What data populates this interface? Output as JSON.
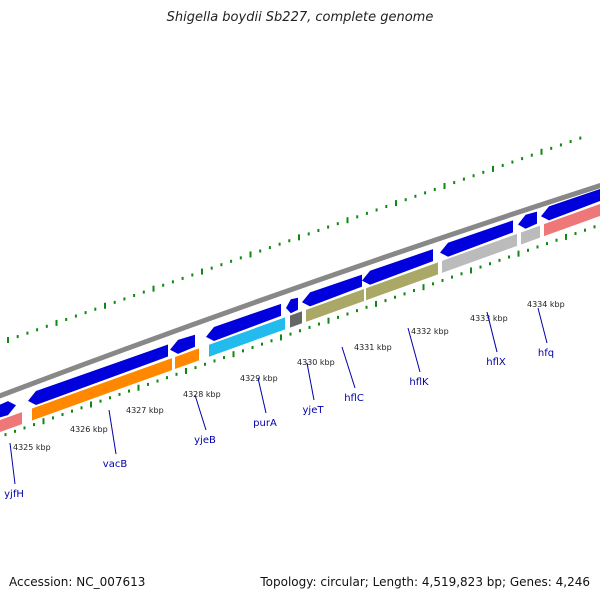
{
  "title": "Shigella boydii Sb227, complete genome",
  "footer": {
    "accession": "Accession: NC_007613",
    "topology": "Topology: circular; Length: 4,519,823 bp; Genes: 4,246"
  },
  "colors": {
    "backbone": "#888888",
    "forward_gene": "#0000dd",
    "orange_gene": "#ff8800",
    "cyan_gene": "#22bbee",
    "olive_gene": "#aaa866",
    "gray_gene": "#bbbbbb",
    "dark_gene": "#666666",
    "pink_gene": "#ee7777",
    "tick": "#118811",
    "label": "#0000aa",
    "ruler_text": "#222222"
  },
  "ruler_labels": [
    "4325 kbp",
    "4326 kbp",
    "4327 kbp",
    "4328 kbp",
    "4329 kbp",
    "4330 kbp",
    "4331 kbp",
    "4332 kbp",
    "4333 kbp",
    "4334 kbp"
  ],
  "gene_labels": [
    "yjfH",
    "vacB",
    "yjeB",
    "purA",
    "yjeT",
    "hflC",
    "hflK",
    "hflX",
    "hfq"
  ]
}
